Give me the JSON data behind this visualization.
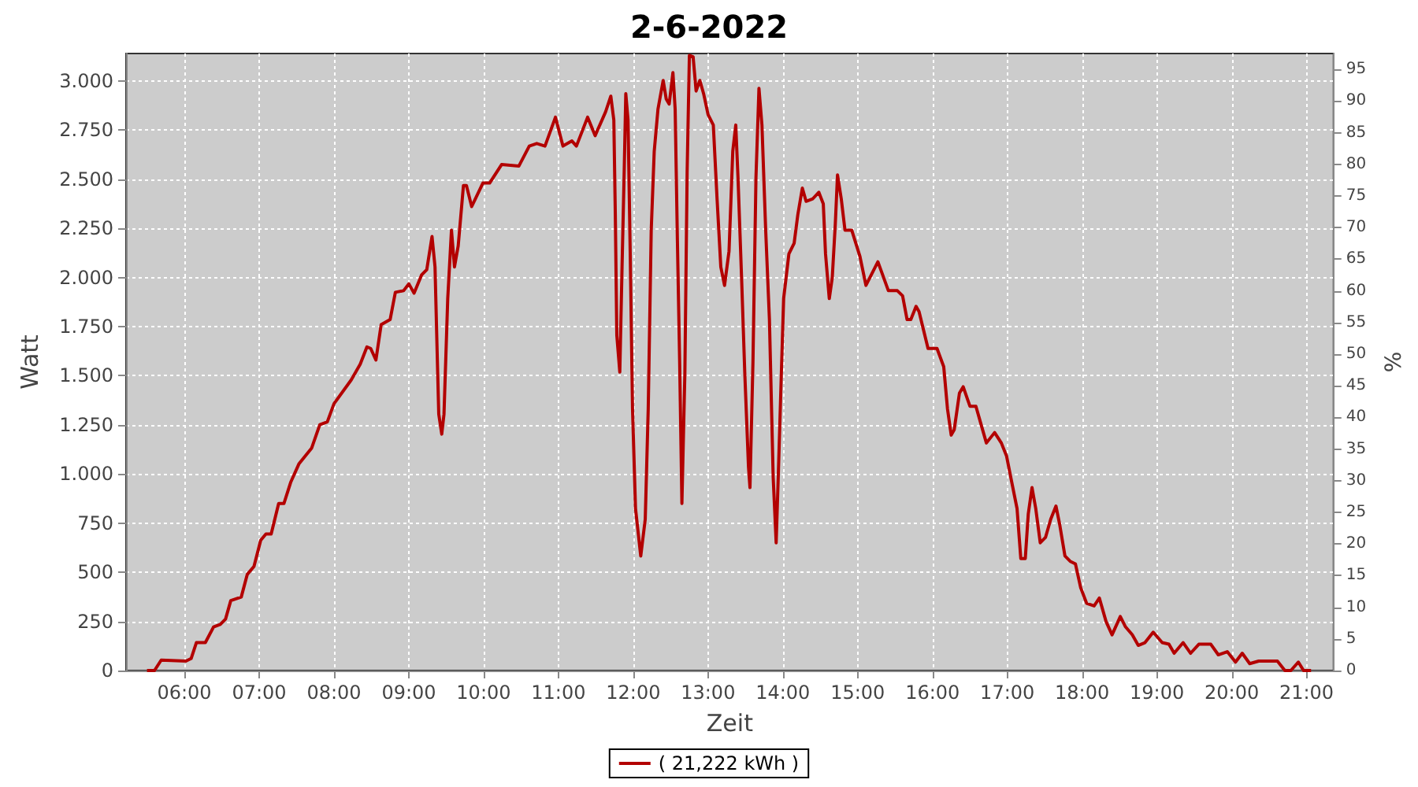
{
  "chart_data": {
    "type": "line",
    "title": "2-6-2022",
    "xlabel": "Zeit",
    "ylabel": "Watt",
    "y2label": "%",
    "xlim": [
      5.22,
      21.36
    ],
    "xticks": [
      {
        "value": 6,
        "label": "06:00"
      },
      {
        "value": 7,
        "label": "07:00"
      },
      {
        "value": 8,
        "label": "08:00"
      },
      {
        "value": 9,
        "label": "09:00"
      },
      {
        "value": 10,
        "label": "10:00"
      },
      {
        "value": 11,
        "label": "11:00"
      },
      {
        "value": 12,
        "label": "12:00"
      },
      {
        "value": 13,
        "label": "13:00"
      },
      {
        "value": 14,
        "label": "14:00"
      },
      {
        "value": 15,
        "label": "15:00"
      },
      {
        "value": 16,
        "label": "16:00"
      },
      {
        "value": 17,
        "label": "17:00"
      },
      {
        "value": 18,
        "label": "18:00"
      },
      {
        "value": 19,
        "label": "19:00"
      },
      {
        "value": 20,
        "label": "20:00"
      },
      {
        "value": 21,
        "label": "21:00"
      }
    ],
    "ylim": [
      0,
      3140
    ],
    "yticks": [
      0,
      250,
      500,
      750,
      {
        "value": 1000,
        "label": "1.000"
      },
      {
        "value": 1250,
        "label": "1.250"
      },
      {
        "value": 1500,
        "label": "1.500"
      },
      {
        "value": 1750,
        "label": "1.750"
      },
      {
        "value": 2000,
        "label": "2.000"
      },
      {
        "value": 2250,
        "label": "2.250"
      },
      {
        "value": 2500,
        "label": "2.500"
      },
      {
        "value": 2750,
        "label": "2.750"
      },
      {
        "value": 3000,
        "label": "3.000"
      }
    ],
    "y2lim": [
      0,
      97.5
    ],
    "y2ticks": [
      0,
      5,
      10,
      15,
      20,
      25,
      30,
      35,
      40,
      45,
      50,
      55,
      60,
      65,
      70,
      75,
      80,
      85,
      90,
      95
    ],
    "grid": true,
    "legend": "bottom",
    "marker": "none",
    "line_style": "solid",
    "series": [
      {
        "name": "( 21,222 kWh )",
        "color": "#b30000",
        "x": [
          5.5,
          5.6,
          5.69,
          6.02,
          6.09,
          6.16,
          6.28,
          6.39,
          6.48,
          6.55,
          6.62,
          6.76,
          6.84,
          6.93,
          7.02,
          7.09,
          7.16,
          7.26,
          7.33,
          7.42,
          7.53,
          7.7,
          7.81,
          7.91,
          8.0,
          8.23,
          8.35,
          8.44,
          8.49,
          8.56,
          8.63,
          8.75,
          8.82,
          8.93,
          9.0,
          9.07,
          9.17,
          9.24,
          9.31,
          9.35,
          9.38,
          9.4,
          9.44,
          9.47,
          9.52,
          9.57,
          9.61,
          9.66,
          9.73,
          9.77,
          9.84,
          9.99,
          10.08,
          10.24,
          10.47,
          10.61,
          10.71,
          10.82,
          10.96,
          11.06,
          11.18,
          11.24,
          11.39,
          11.49,
          11.63,
          11.7,
          11.74,
          11.76,
          11.78,
          11.82,
          11.85,
          11.88,
          11.9,
          11.93,
          11.96,
          11.99,
          12.03,
          12.1,
          12.16,
          12.2,
          12.24,
          12.28,
          12.33,
          12.4,
          12.44,
          12.48,
          12.53,
          12.56,
          12.59,
          12.62,
          12.65,
          12.69,
          12.72,
          12.75,
          12.8,
          12.84,
          12.89,
          12.94,
          13.0,
          13.07,
          13.12,
          13.17,
          13.22,
          13.28,
          13.33,
          13.37,
          13.4,
          13.45,
          13.49,
          13.54,
          13.56,
          13.6,
          13.64,
          13.68,
          13.72,
          13.77,
          13.82,
          13.87,
          13.91,
          13.94,
          13.98,
          14.01,
          14.08,
          14.15,
          14.2,
          14.26,
          14.31,
          14.4,
          14.48,
          14.54,
          14.57,
          14.62,
          14.66,
          14.7,
          14.73,
          14.78,
          14.83,
          14.92,
          15.03,
          15.11,
          15.27,
          15.41,
          15.53,
          15.6,
          15.66,
          15.71,
          15.78,
          15.82,
          15.94,
          16.06,
          16.15,
          16.2,
          16.25,
          16.29,
          16.36,
          16.41,
          16.5,
          16.58,
          16.65,
          16.72,
          16.83,
          16.92,
          16.99,
          17.06,
          17.13,
          17.18,
          17.24,
          17.28,
          17.33,
          17.38,
          17.44,
          17.51,
          17.58,
          17.65,
          17.7,
          17.77,
          17.84,
          17.91,
          17.98,
          18.06,
          18.16,
          18.23,
          18.32,
          18.4,
          18.51,
          18.58,
          18.67,
          18.75,
          18.84,
          18.95,
          19.07,
          19.16,
          19.23,
          19.35,
          19.45,
          19.56,
          19.72,
          19.82,
          19.94,
          20.05,
          20.14,
          20.24,
          20.36,
          20.61,
          20.71,
          20.79,
          20.89,
          20.96,
          21.06
        ],
        "values": [
          0,
          0,
          53,
          48,
          61,
          142,
          142,
          222,
          235,
          262,
          356,
          374,
          489,
          530,
          663,
          695,
          695,
          850,
          850,
          957,
          1051,
          1131,
          1251,
          1265,
          1358,
          1479,
          1559,
          1647,
          1639,
          1580,
          1760,
          1786,
          1925,
          1933,
          1968,
          1920,
          2013,
          2040,
          2209,
          2054,
          1599,
          1305,
          1203,
          1305,
          1893,
          2241,
          2054,
          2161,
          2468,
          2468,
          2361,
          2481,
          2481,
          2575,
          2567,
          2669,
          2682,
          2669,
          2816,
          2669,
          2695,
          2669,
          2816,
          2722,
          2843,
          2923,
          2802,
          2321,
          1706,
          1519,
          2054,
          2562,
          2936,
          2802,
          2107,
          1332,
          824,
          583,
          770,
          1332,
          2241,
          2642,
          2856,
          3003,
          2909,
          2883,
          3043,
          2856,
          2187,
          1573,
          850,
          1519,
          2535,
          3130,
          3123,
          2949,
          3003,
          2936,
          2829,
          2776,
          2401,
          2054,
          1960,
          2134,
          2642,
          2776,
          2508,
          1973,
          1519,
          1037,
          931,
          1573,
          2508,
          2963,
          2776,
          2241,
          1786,
          984,
          650,
          1011,
          1519,
          1893,
          2120,
          2174,
          2321,
          2455,
          2388,
          2401,
          2434,
          2375,
          2120,
          1893,
          2000,
          2268,
          2522,
          2401,
          2241,
          2241,
          2107,
          1960,
          2080,
          1933,
          1933,
          1907,
          1786,
          1786,
          1853,
          1826,
          1639,
          1639,
          1546,
          1332,
          1198,
          1225,
          1412,
          1444,
          1345,
          1345,
          1251,
          1158,
          1211,
          1158,
          1091,
          957,
          824,
          570,
          570,
          797,
          931,
          824,
          650,
          677,
          770,
          837,
          743,
          583,
          556,
          543,
          422,
          342,
          329,
          369,
          249,
          182,
          275,
          222,
          182,
          128,
          142,
          195,
          142,
          134,
          88,
          142,
          88,
          134,
          134,
          80,
          96,
          43,
          88,
          35,
          48,
          48,
          0,
          0,
          43,
          0,
          0
        ]
      }
    ]
  }
}
